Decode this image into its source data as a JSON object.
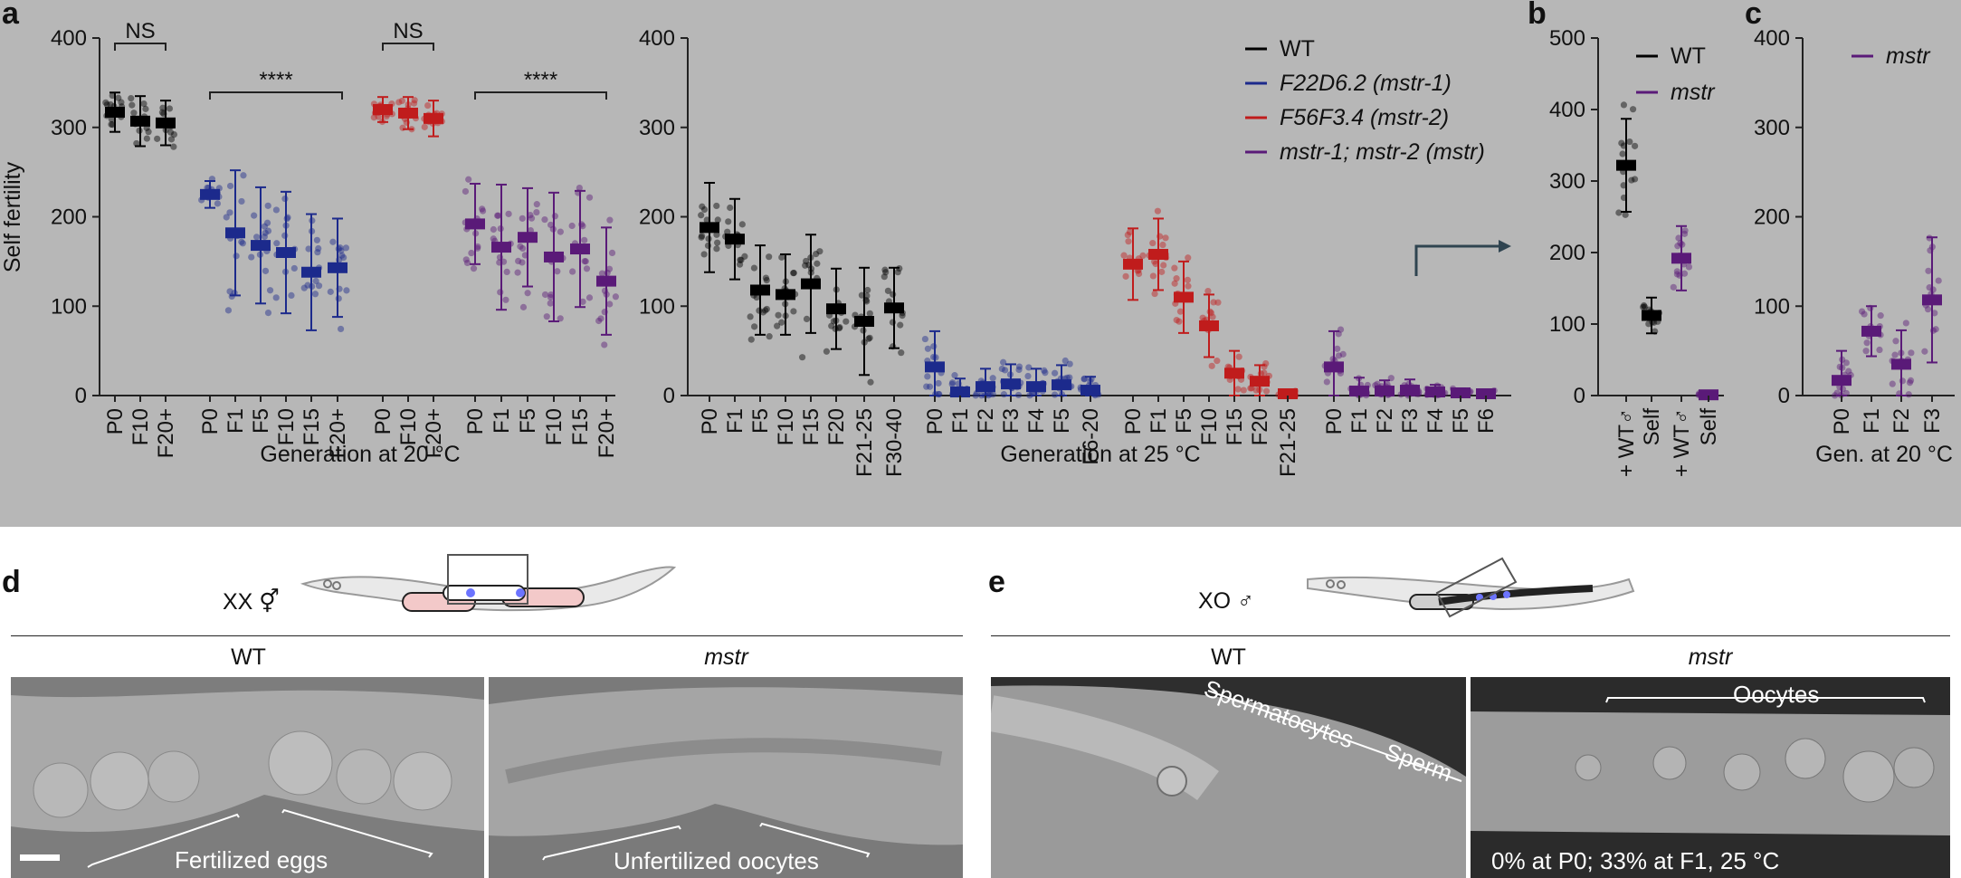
{
  "panels": {
    "a": "a",
    "b": "b",
    "c": "c",
    "d": "d",
    "e": "e"
  },
  "chart_data": [
    {
      "type": "scatter",
      "panel": "a (20 °C)",
      "ylabel": "Self fertility",
      "xlabel": "Generation at 20 °C",
      "ylim": [
        0,
        400
      ],
      "yticks": [
        0,
        100,
        200,
        300,
        400
      ],
      "groups": [
        {
          "series": "WT",
          "categories": [
            "P0",
            "F10",
            "F20+"
          ],
          "means": [
            317,
            307,
            305
          ],
          "sd": [
            22,
            28,
            25
          ]
        },
        {
          "series": "F22D6.2 (mstr-1)",
          "categories": [
            "P0",
            "F1",
            "F5",
            "F10",
            "F15",
            "F20+"
          ],
          "means": [
            225,
            182,
            168,
            160,
            138,
            143
          ],
          "sd": [
            15,
            70,
            65,
            68,
            65,
            55
          ]
        },
        {
          "series": "F56F3.4 (mstr-2)",
          "categories": [
            "P0",
            "F10",
            "F20+"
          ],
          "means": [
            320,
            316,
            310
          ],
          "sd": [
            14,
            18,
            20
          ]
        },
        {
          "series": "mstr-1; mstr-2 (mstr)",
          "categories": [
            "P0",
            "F1",
            "F5",
            "F10",
            "F15",
            "F20+"
          ],
          "means": [
            192,
            166,
            177,
            155,
            164,
            128
          ],
          "sd": [
            45,
            70,
            55,
            72,
            65,
            60
          ]
        }
      ],
      "significance": [
        "NS",
        "****",
        "NS",
        "****"
      ]
    },
    {
      "type": "scatter",
      "panel": "a (25 °C)",
      "xlabel": "Generation at 25 °C",
      "ylim": [
        0,
        400
      ],
      "yticks": [
        0,
        100,
        200,
        300,
        400
      ],
      "legend": [
        {
          "label": "WT",
          "color": "#000000"
        },
        {
          "label": "F22D6.2 (mstr-1)",
          "color": "#1c2a8c"
        },
        {
          "label": "F56F3.4 (mstr-2)",
          "color": "#c01c1c"
        },
        {
          "label": "mstr-1; mstr-2 (mstr)",
          "color": "#5a1a78"
        }
      ],
      "groups": [
        {
          "series": "WT",
          "categories": [
            "P0",
            "F1",
            "F5",
            "F10",
            "F15",
            "F20",
            "F21-25",
            "F30-40"
          ],
          "means": [
            188,
            175,
            118,
            113,
            125,
            97,
            83,
            98
          ],
          "sd": [
            50,
            45,
            50,
            45,
            55,
            45,
            60,
            45
          ]
        },
        {
          "series": "F22D6.2 (mstr-1)",
          "categories": [
            "P0",
            "F1",
            "F2",
            "F3",
            "F4",
            "F5",
            "F6-20"
          ],
          "means": [
            32,
            4,
            10,
            13,
            10,
            12,
            6
          ],
          "sd": [
            40,
            15,
            20,
            22,
            20,
            22,
            15
          ]
        },
        {
          "series": "F56F3.4 (mstr-2)",
          "categories": [
            "P0",
            "F1",
            "F5",
            "F10",
            "F15",
            "F20",
            "F21-25"
          ],
          "means": [
            147,
            158,
            110,
            78,
            25,
            16,
            2
          ],
          "sd": [
            40,
            40,
            40,
            35,
            25,
            18,
            3
          ]
        },
        {
          "series": "mstr-1; mstr-2 (mstr)",
          "categories": [
            "P0",
            "F1",
            "F2",
            "F3",
            "F4",
            "F5",
            "F6"
          ],
          "means": [
            32,
            5,
            5,
            6,
            4,
            3,
            2
          ],
          "sd": [
            40,
            15,
            12,
            12,
            8,
            5,
            3
          ]
        }
      ]
    },
    {
      "type": "scatter",
      "panel": "b",
      "ylim": [
        0,
        500
      ],
      "yticks": [
        0,
        100,
        200,
        300,
        400,
        500
      ],
      "legend": [
        {
          "label": "WT",
          "color": "#000000"
        },
        {
          "label": "mstr",
          "color": "#5a1a78"
        }
      ],
      "groups": [
        {
          "series": "WT",
          "categories": [
            "+ WT♂",
            "Self"
          ],
          "means": [
            322,
            112
          ],
          "sd": [
            65,
            25
          ]
        },
        {
          "series": "mstr",
          "categories": [
            "+ WT♂",
            "Self"
          ],
          "means": [
            192,
            1
          ],
          "sd": [
            45,
            1
          ]
        }
      ]
    },
    {
      "type": "scatter",
      "panel": "c",
      "xlabel": "Gen. at 20 °C",
      "ylim": [
        0,
        400
      ],
      "yticks": [
        0,
        100,
        200,
        300,
        400
      ],
      "legend": [
        {
          "label": "mstr",
          "color": "#5a1a78"
        }
      ],
      "groups": [
        {
          "series": "mstr",
          "categories": [
            "P0",
            "F1",
            "F2",
            "F3"
          ],
          "means": [
            17,
            72,
            35,
            107
          ],
          "sd": [
            33,
            28,
            38,
            70
          ]
        }
      ]
    }
  ],
  "panel_d": {
    "genotype": "XX ⚥",
    "labels": [
      "WT",
      "mstr"
    ],
    "annotations": [
      "Fertilized eggs",
      "Unfertilized oocytes"
    ]
  },
  "panel_e": {
    "genotype": "XO ♂",
    "labels": [
      "WT",
      "mstr"
    ],
    "annotations": [
      "Spermatocytes",
      "Sperm",
      "Oocytes",
      "0% at P0; 33% at F1, 25 °C"
    ]
  }
}
